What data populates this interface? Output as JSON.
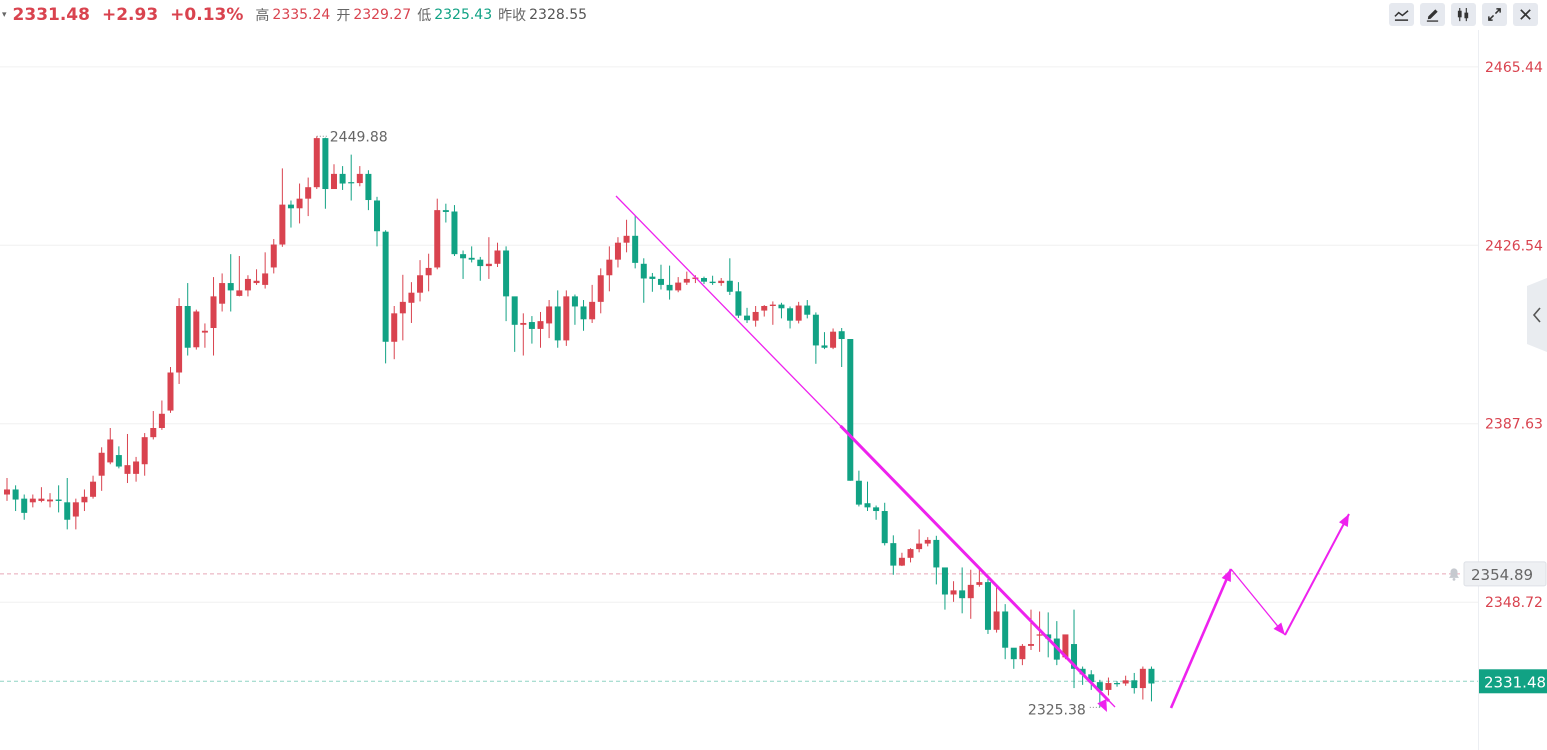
{
  "header": {
    "caret": "▾",
    "price": "2331.48",
    "change": "+2.93",
    "change_pct": "+0.13%",
    "stats": [
      {
        "label": "高",
        "value": "2335.24",
        "tone": "up"
      },
      {
        "label": "开",
        "value": "2329.27",
        "tone": "up"
      },
      {
        "label": "低",
        "value": "2325.43",
        "tone": "down"
      },
      {
        "label": "昨收",
        "value": "2328.55",
        "tone": "neutral"
      }
    ]
  },
  "toolbar": [
    {
      "name": "line-indicator-icon"
    },
    {
      "name": "pen-draw-icon"
    },
    {
      "name": "candlestick-icon"
    },
    {
      "name": "fullscreen-icon"
    },
    {
      "name": "close-icon"
    }
  ],
  "colors": {
    "up": "#d9434f",
    "down": "#11a284",
    "arrow": "#ee22ee",
    "axis_label": "#d9434f",
    "grid": "#f0f0f0"
  },
  "chart_data": {
    "type": "candlestick",
    "y_range": [
      2316.5,
      2470.2
    ],
    "y_ticks": [
      "2465.44",
      "2426.54",
      "2387.63",
      "2348.72"
    ],
    "high_label": "2449.88",
    "low_label": "2325.38",
    "price_lines": [
      {
        "label": "2354.89",
        "value": 2354.89,
        "style": "alert"
      },
      {
        "label": "2331.48",
        "value": 2331.48,
        "style": "current"
      }
    ],
    "candles": [
      [
        2372.2,
        2373.3,
        2375.8,
        2370.8
      ],
      [
        2373.3,
        2371.1,
        2374.2,
        2368.6
      ],
      [
        2371.3,
        2368.2,
        2372.2,
        2366.7
      ],
      [
        2370.5,
        2371.3,
        2372.2,
        2369.4
      ],
      [
        2370.8,
        2371.3,
        2373.8,
        2370.5
      ],
      [
        2370.7,
        2371.1,
        2372.5,
        2369.4
      ],
      [
        2371.1,
        2370.8,
        2374.2,
        2368.3
      ],
      [
        2370.5,
        2366.7,
        2375.8,
        2364.6
      ],
      [
        2367.4,
        2370.5,
        2371.3,
        2364.6
      ],
      [
        2370.5,
        2371.7,
        2373.3,
        2368.6
      ],
      [
        2371.7,
        2375.0,
        2376.3,
        2371.3
      ],
      [
        2376.3,
        2381.3,
        2382.5,
        2373.0
      ],
      [
        2379.2,
        2384.2,
        2386.7,
        2378.8
      ],
      [
        2380.8,
        2378.3,
        2382.7,
        2377.9
      ],
      [
        2376.7,
        2378.6,
        2385.4,
        2374.7
      ],
      [
        2376.7,
        2379.4,
        2380.4,
        2375.0
      ],
      [
        2378.8,
        2384.7,
        2385.6,
        2376.3
      ],
      [
        2384.7,
        2386.7,
        2390.4,
        2384.2
      ],
      [
        2386.7,
        2389.8,
        2392.7,
        2386.3
      ],
      [
        2390.5,
        2398.8,
        2400.0,
        2390.0
      ],
      [
        2398.8,
        2413.3,
        2415.0,
        2396.3
      ],
      [
        2413.3,
        2404.2,
        2418.3,
        2402.5
      ],
      [
        2404.3,
        2412.1,
        2412.5,
        2403.8
      ],
      [
        2407.5,
        2407.9,
        2409.5,
        2404.2
      ],
      [
        2408.5,
        2415.4,
        2419.6,
        2402.5
      ],
      [
        2413.8,
        2418.3,
        2420.4,
        2412.1
      ],
      [
        2418.3,
        2416.7,
        2424.6,
        2412.1
      ],
      [
        2415.5,
        2416.7,
        2424.2,
        2415.4
      ],
      [
        2416.7,
        2419.2,
        2420.0,
        2415.4
      ],
      [
        2418.3,
        2418.8,
        2421.3,
        2417.9
      ],
      [
        2417.9,
        2420.4,
        2425.0,
        2417.1
      ],
      [
        2421.7,
        2426.7,
        2427.9,
        2420.4
      ],
      [
        2426.7,
        2435.4,
        2443.3,
        2426.2
      ],
      [
        2435.4,
        2434.6,
        2436.3,
        2430.4
      ],
      [
        2434.6,
        2436.7,
        2440.0,
        2431.3
      ],
      [
        2436.7,
        2439.2,
        2441.3,
        2432.9
      ],
      [
        2439.2,
        2449.9,
        2450.3,
        2438.8
      ],
      [
        2449.9,
        2438.8,
        2450.0,
        2434.5
      ],
      [
        2438.8,
        2442.1,
        2444.2,
        2439.1
      ],
      [
        2442.1,
        2440.0,
        2443.8,
        2438.6
      ],
      [
        2440.3,
        2440.1,
        2446.3,
        2436.3
      ],
      [
        2440.1,
        2442.1,
        2443.8,
        2439.4
      ],
      [
        2442.1,
        2436.4,
        2442.9,
        2434.2
      ],
      [
        2436.3,
        2429.6,
        2437.1,
        2426.3
      ],
      [
        2429.5,
        2405.5,
        2429.8,
        2400.8
      ],
      [
        2405.5,
        2411.7,
        2413.3,
        2401.7
      ],
      [
        2411.7,
        2414.2,
        2420.1,
        2405.8
      ],
      [
        2414.0,
        2416.2,
        2418.5,
        2409.6
      ],
      [
        2416.2,
        2420.0,
        2423.3,
        2414.3
      ],
      [
        2420.0,
        2421.6,
        2424.7,
        2416.5
      ],
      [
        2421.7,
        2434.2,
        2436.7,
        2421.3
      ],
      [
        2434.2,
        2433.8,
        2435.6,
        2431.5
      ],
      [
        2433.9,
        2424.6,
        2435.3,
        2424.2
      ],
      [
        2424.6,
        2423.7,
        2425.4,
        2419.2
      ],
      [
        2423.8,
        2423.4,
        2426.3,
        2422.8
      ],
      [
        2423.4,
        2422.0,
        2424.0,
        2418.8
      ],
      [
        2422.0,
        2422.5,
        2428.3,
        2419.2
      ],
      [
        2422.5,
        2425.4,
        2427.1,
        2421.8
      ],
      [
        2425.4,
        2415.4,
        2426.3,
        2410.0
      ],
      [
        2415.4,
        2409.2,
        2412.9,
        2403.3
      ],
      [
        2409.2,
        2409.6,
        2411.7,
        2402.5
      ],
      [
        2409.8,
        2408.3,
        2411.1,
        2405.1
      ],
      [
        2408.3,
        2410.0,
        2412.0,
        2404.2
      ],
      [
        2409.5,
        2413.2,
        2414.6,
        2406.3
      ],
      [
        2413.2,
        2405.8,
        2416.7,
        2404.2
      ],
      [
        2405.8,
        2415.4,
        2416.7,
        2404.6
      ],
      [
        2415.4,
        2413.2,
        2415.8,
        2409.2
      ],
      [
        2413.2,
        2410.4,
        2414.6,
        2407.9
      ],
      [
        2410.4,
        2414.2,
        2417.9,
        2409.6
      ],
      [
        2414.2,
        2420.0,
        2421.5,
        2411.7
      ],
      [
        2420.0,
        2423.4,
        2426.3,
        2416.5
      ],
      [
        2423.4,
        2427.1,
        2428.3,
        2421.7
      ],
      [
        2427.1,
        2428.6,
        2432.1,
        2425.0
      ],
      [
        2428.6,
        2422.7,
        2432.9,
        2421.5
      ],
      [
        2422.5,
        2419.3,
        2423.7,
        2414.0
      ],
      [
        2419.7,
        2419.2,
        2420.5,
        2416.4
      ],
      [
        2419.2,
        2417.9,
        2422.3,
        2416.9
      ],
      [
        2417.9,
        2416.7,
        2422.1,
        2414.7
      ],
      [
        2416.7,
        2418.4,
        2419.6,
        2416.3
      ],
      [
        2418.4,
        2419.2,
        2420.8,
        2417.9
      ],
      [
        2419.2,
        2419.5,
        2420.0,
        2418.3
      ],
      [
        2419.4,
        2418.6,
        2419.7,
        2418.1
      ],
      [
        2418.6,
        2418.3,
        2419.9,
        2417.9
      ],
      [
        2418.3,
        2418.8,
        2419.4,
        2417.7
      ],
      [
        2418.8,
        2416.4,
        2423.7,
        2415.7
      ],
      [
        2416.5,
        2411.2,
        2418.5,
        2410.7
      ],
      [
        2411.2,
        2410.2,
        2412.9,
        2409.6
      ],
      [
        2410.1,
        2412.0,
        2413.3,
        2408.8
      ],
      [
        2412.3,
        2413.3,
        2413.5,
        2411.0
      ],
      [
        2413.3,
        2413.6,
        2414.3,
        2409.2
      ],
      [
        2413.6,
        2412.8,
        2414.0,
        2410.6
      ],
      [
        2412.8,
        2410.1,
        2413.2,
        2408.4
      ],
      [
        2410.1,
        2413.4,
        2414.2,
        2409.5
      ],
      [
        2413.4,
        2411.4,
        2414.6,
        2410.6
      ],
      [
        2411.4,
        2404.7,
        2411.9,
        2400.7
      ],
      [
        2404.7,
        2404.2,
        2407.6,
        2403.9
      ],
      [
        2404.2,
        2407.7,
        2408.4,
        2403.9
      ],
      [
        2407.8,
        2406.1,
        2408.5,
        2400.0
      ],
      [
        2406.1,
        2375.2,
        2406.1,
        2375.2
      ],
      [
        2375.2,
        2370.0,
        2377.4,
        2369.6
      ],
      [
        2370.3,
        2369.4,
        2375.0,
        2368.6
      ],
      [
        2369.4,
        2368.6,
        2369.8,
        2366.7
      ],
      [
        2368.6,
        2361.6,
        2370.4,
        2361.1
      ],
      [
        2361.6,
        2356.7,
        2363.3,
        2354.7
      ],
      [
        2356.7,
        2358.4,
        2359.5,
        2356.6
      ],
      [
        2358.4,
        2360.3,
        2360.5,
        2357.4
      ],
      [
        2360.3,
        2361.5,
        2364.6,
        2359.6
      ],
      [
        2361.5,
        2362.3,
        2362.9,
        2360.9
      ],
      [
        2362.3,
        2356.3,
        2363.2,
        2352.6
      ],
      [
        2356.3,
        2350.4,
        2353.8,
        2347.1
      ],
      [
        2350.4,
        2351.3,
        2353.3,
        2348.8
      ],
      [
        2351.3,
        2349.6,
        2356.3,
        2346.3
      ],
      [
        2349.6,
        2352.5,
        2355.8,
        2345.1
      ],
      [
        2352.5,
        2353.1,
        2356.4,
        2352.1
      ],
      [
        2353.1,
        2342.7,
        2353.8,
        2341.8
      ],
      [
        2342.7,
        2346.7,
        2352.1,
        2342.1
      ],
      [
        2346.7,
        2338.8,
        2348.3,
        2336.3
      ],
      [
        2338.8,
        2336.3,
        2337.9,
        2334.2
      ],
      [
        2336.3,
        2339.2,
        2339.6,
        2335.0
      ],
      [
        2339.2,
        2339.6,
        2347.1,
        2338.3
      ],
      [
        2341.5,
        2341.7,
        2346.7,
        2337.9
      ],
      [
        2341.7,
        2340.8,
        2346.5,
        2336.7
      ],
      [
        2340.8,
        2336.2,
        2344.6,
        2335.0
      ],
      [
        2336.7,
        2341.7,
        2341.3,
        2336.3
      ],
      [
        2339.6,
        2334.2,
        2347.1,
        2330.0
      ],
      [
        2334.2,
        2333.0,
        2334.7,
        2330.7
      ],
      [
        2333.0,
        2331.3,
        2333.9,
        2329.6
      ],
      [
        2331.3,
        2329.4,
        2331.8,
        2325.8
      ],
      [
        2329.6,
        2331.1,
        2332.3,
        2328.4
      ],
      [
        2331.1,
        2331.0,
        2331.5,
        2330.3
      ],
      [
        2331.0,
        2331.7,
        2332.7,
        2330.5
      ],
      [
        2331.7,
        2330.0,
        2333.3,
        2328.8
      ],
      [
        2330.0,
        2334.2,
        2334.7,
        2327.5
      ],
      [
        2334.2,
        2331.0,
        2334.7,
        2327.1
      ]
    ],
    "trendline": {
      "from": [
        616,
        196
      ],
      "to": [
        1115,
        707
      ]
    },
    "forecast": {
      "points": [
        [
          1171,
          708
        ],
        [
          1231,
          569
        ],
        [
          1285,
          635
        ],
        [
          1349,
          514
        ]
      ]
    },
    "forecast_arrow_tips": [
      [
        1107,
        712
      ],
      [
        1231,
        569
      ],
      [
        1285,
        635
      ],
      [
        1349,
        514
      ]
    ]
  }
}
